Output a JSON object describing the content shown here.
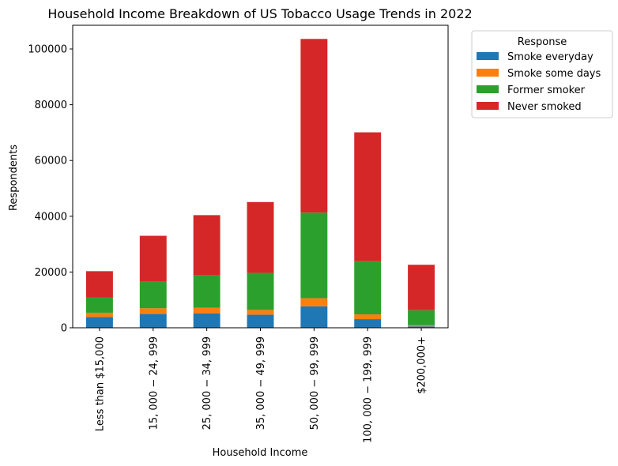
{
  "chart_data": {
    "type": "bar",
    "stacked": true,
    "title": "Household Income Breakdown of US Tobacco Usage Trends in 2022",
    "xlabel": "Household Income",
    "ylabel": "Respondents",
    "ylim": [
      0,
      108500
    ],
    "yticks": [
      0,
      20000,
      40000,
      60000,
      80000,
      100000
    ],
    "ytick_labels": [
      "0",
      "20000",
      "40000",
      "60000",
      "80000",
      "100000"
    ],
    "grid": false,
    "legend": {
      "title": "Response",
      "placement": "outside-top-right"
    },
    "categories": [
      "Less than $15,000",
      "$15,000 − $24,999",
      "$25,000 − $34,999",
      "$35,000 − $49,999",
      "$50,000 − $99,999",
      "$100,000 − $199,999",
      "$200,000+"
    ],
    "category_labels": [
      "Less than $15,000",
      "15, 000 − 24, 999",
      "25, 000 − 34, 999",
      "35, 000 − 49, 999",
      "50, 000 − 99, 999",
      "100, 000 − 199, 999",
      "$200,000+"
    ],
    "series": [
      {
        "name": "Smoke everyday",
        "color": "#1f77b4",
        "values": [
          3900,
          5000,
          5200,
          4700,
          7700,
          3100,
          500
        ]
      },
      {
        "name": "Smoke some days",
        "color": "#ff7f0e",
        "values": [
          1500,
          2000,
          2000,
          1700,
          2900,
          1700,
          400
        ]
      },
      {
        "name": "Former smoker",
        "color": "#2ca02c",
        "values": [
          5400,
          9600,
          11600,
          13300,
          30700,
          19100,
          5400
        ]
      },
      {
        "name": "Never smoked",
        "color": "#d62728",
        "values": [
          9500,
          16400,
          21600,
          25400,
          62300,
          46200,
          16300
        ]
      }
    ]
  }
}
